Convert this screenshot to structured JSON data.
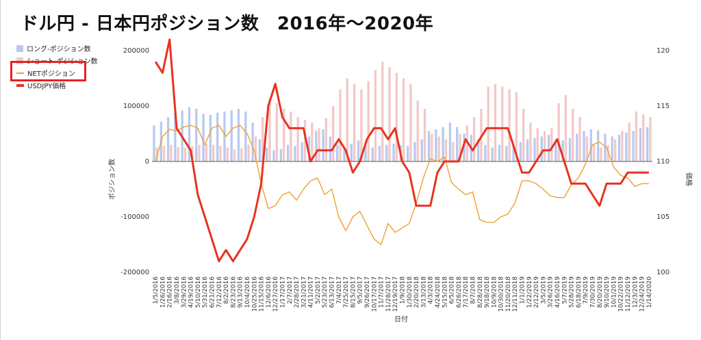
{
  "chart_data": {
    "type": "bar",
    "title": "ドル円 - 日本円ポジション数　2016年～2020年",
    "xlabel": "日付",
    "ylabel_left": "ポジション数",
    "ylabel_right": "価格",
    "ylim_left": [
      -200000,
      200000
    ],
    "ylim_right": [
      100,
      120
    ],
    "yticks_left": [
      "200000",
      "100000",
      "0",
      "-100000",
      "-200000"
    ],
    "yticks_right": [
      "120",
      "115",
      "110",
      "105",
      "100"
    ],
    "categories": [
      "1/5/2016",
      "1/26/2016",
      "2/16/2016",
      "3/8/2016",
      "3/29/2016",
      "4/19/2016",
      "5/10/2016",
      "5/31/2016",
      "6/21/2016",
      "7/12/2016",
      "8/2/2016",
      "8/23/2016",
      "9/13/2016",
      "10/4/2016",
      "10/25/2016",
      "11/15/2016",
      "12/6/2016",
      "12/27/2016",
      "1/17/2017",
      "2/7/2017",
      "2/28/2017",
      "3/21/2017",
      "4/11/2017",
      "5/2/2017",
      "5/23/2017",
      "6/13/2017",
      "7/4/2017",
      "7/25/2017",
      "8/15/2017",
      "9/5/2017",
      "9/26/2017",
      "10/17/2017",
      "11/7/2017",
      "11/28/2017",
      "12/19/2017",
      "1/9/2018",
      "1/30/2018",
      "2/20/2018",
      "3/13/2018",
      "4/3/2018",
      "4/24/2018",
      "5/15/2018",
      "6/5/2018",
      "6/26/2018",
      "7/17/2018",
      "8/7/2018",
      "8/28/2018",
      "9/18/2018",
      "10/9/2018",
      "10/30/2018",
      "11/20/2018",
      "12/11/2018",
      "1/1/2019",
      "1/22/2019",
      "2/12/2019",
      "3/5/2019",
      "3/26/2019",
      "4/16/2019",
      "5/7/2019",
      "5/28/2019",
      "6/18/2019",
      "7/9/2019",
      "7/30/2019",
      "8/20/2019",
      "9/10/2019",
      "10/1/2019",
      "10/22/2019",
      "11/12/2019",
      "12/3/2019",
      "12/24/2019",
      "1/14/2020"
    ],
    "series": [
      {
        "name": "ロング-ポジション数",
        "axis": "left",
        "type": "bar",
        "color": "#b9c9ee",
        "values": [
          65000,
          72000,
          80000,
          88000,
          92000,
          98000,
          95000,
          86000,
          84000,
          88000,
          90000,
          92000,
          95000,
          90000,
          70000,
          40000,
          25000,
          20000,
          22000,
          30000,
          28000,
          35000,
          45000,
          55000,
          58000,
          45000,
          30000,
          25000,
          32000,
          38000,
          30000,
          25000,
          28000,
          30000,
          32000,
          30000,
          28000,
          35000,
          40000,
          55000,
          58000,
          62000,
          70000,
          62000,
          50000,
          48000,
          40000,
          30000,
          25000,
          30000,
          28000,
          30000,
          35000,
          40000,
          42000,
          45000,
          48000,
          40000,
          38000,
          42000,
          50000,
          55000,
          58000,
          56000,
          50000,
          45000,
          48000,
          52000,
          55000,
          60000,
          62000
        ]
      },
      {
        "name": "ショート-ポジション数",
        "axis": "left",
        "type": "bar",
        "color": "#f3c8c8",
        "values": [
          25000,
          28000,
          30000,
          26000,
          25000,
          28000,
          30000,
          32000,
          30000,
          28000,
          25000,
          22000,
          24000,
          30000,
          45000,
          80000,
          110000,
          105000,
          95000,
          90000,
          80000,
          75000,
          70000,
          60000,
          78000,
          100000,
          130000,
          150000,
          140000,
          130000,
          145000,
          165000,
          180000,
          170000,
          160000,
          150000,
          140000,
          110000,
          95000,
          50000,
          45000,
          40000,
          35000,
          50000,
          65000,
          80000,
          95000,
          135000,
          140000,
          135000,
          130000,
          125000,
          95000,
          70000,
          60000,
          55000,
          60000,
          105000,
          120000,
          95000,
          80000,
          45000,
          30000,
          25000,
          30000,
          40000,
          55000,
          70000,
          90000,
          85000,
          80000
        ]
      },
      {
        "name": "NETポジション",
        "axis": "left",
        "type": "line",
        "color": "#f0a030",
        "values": [
          0,
          45000,
          58000,
          55000,
          62000,
          65000,
          60000,
          30000,
          60000,
          65000,
          45000,
          60000,
          65000,
          50000,
          20000,
          -40000,
          -85000,
          -80000,
          -60000,
          -55000,
          -70000,
          -50000,
          -35000,
          -30000,
          -60000,
          -50000,
          -100000,
          -125000,
          -100000,
          -90000,
          -115000,
          -140000,
          -150000,
          -112000,
          -128000,
          -120000,
          -112000,
          -75000,
          -30000,
          5000,
          0,
          8000,
          -38000,
          -50000,
          -60000,
          -55000,
          -105000,
          -110000,
          -110000,
          -100000,
          -95000,
          -75000,
          -35000,
          -35000,
          -40000,
          -50000,
          -62000,
          -65000,
          -65000,
          -42000,
          -30000,
          -5000,
          30000,
          35000,
          25000,
          -10000,
          -25000,
          -30000,
          -45000,
          -40000,
          -40000
        ]
      },
      {
        "name": "USDJPY価格",
        "axis": "right",
        "type": "line",
        "color": "#e8321e",
        "values": [
          119,
          118,
          121,
          113,
          112,
          111,
          107,
          105,
          103,
          101,
          102,
          101,
          102,
          103,
          105,
          108,
          115,
          117,
          114,
          113,
          113,
          113,
          110,
          111,
          111,
          111,
          112,
          111,
          109,
          110,
          112,
          113,
          113,
          112,
          113,
          110,
          109,
          106,
          106,
          106,
          109,
          110,
          110,
          110,
          112,
          111,
          112,
          113,
          113,
          113,
          113,
          111,
          109,
          109,
          110,
          111,
          111,
          112,
          110,
          108,
          108,
          108,
          107,
          106,
          108,
          108,
          108,
          109,
          109,
          109,
          109
        ]
      }
    ]
  },
  "legend": [
    {
      "label": "ロング-ポジション数",
      "color": "#b9c9ee",
      "kind": "box"
    },
    {
      "label": "ショート-ポジション数",
      "color": "#f3c8c8",
      "kind": "box"
    },
    {
      "label": "NETポジション",
      "color": "#f0a030",
      "kind": "line"
    },
    {
      "label": "USDJPY価格",
      "color": "#e8321e",
      "kind": "thick"
    }
  ]
}
